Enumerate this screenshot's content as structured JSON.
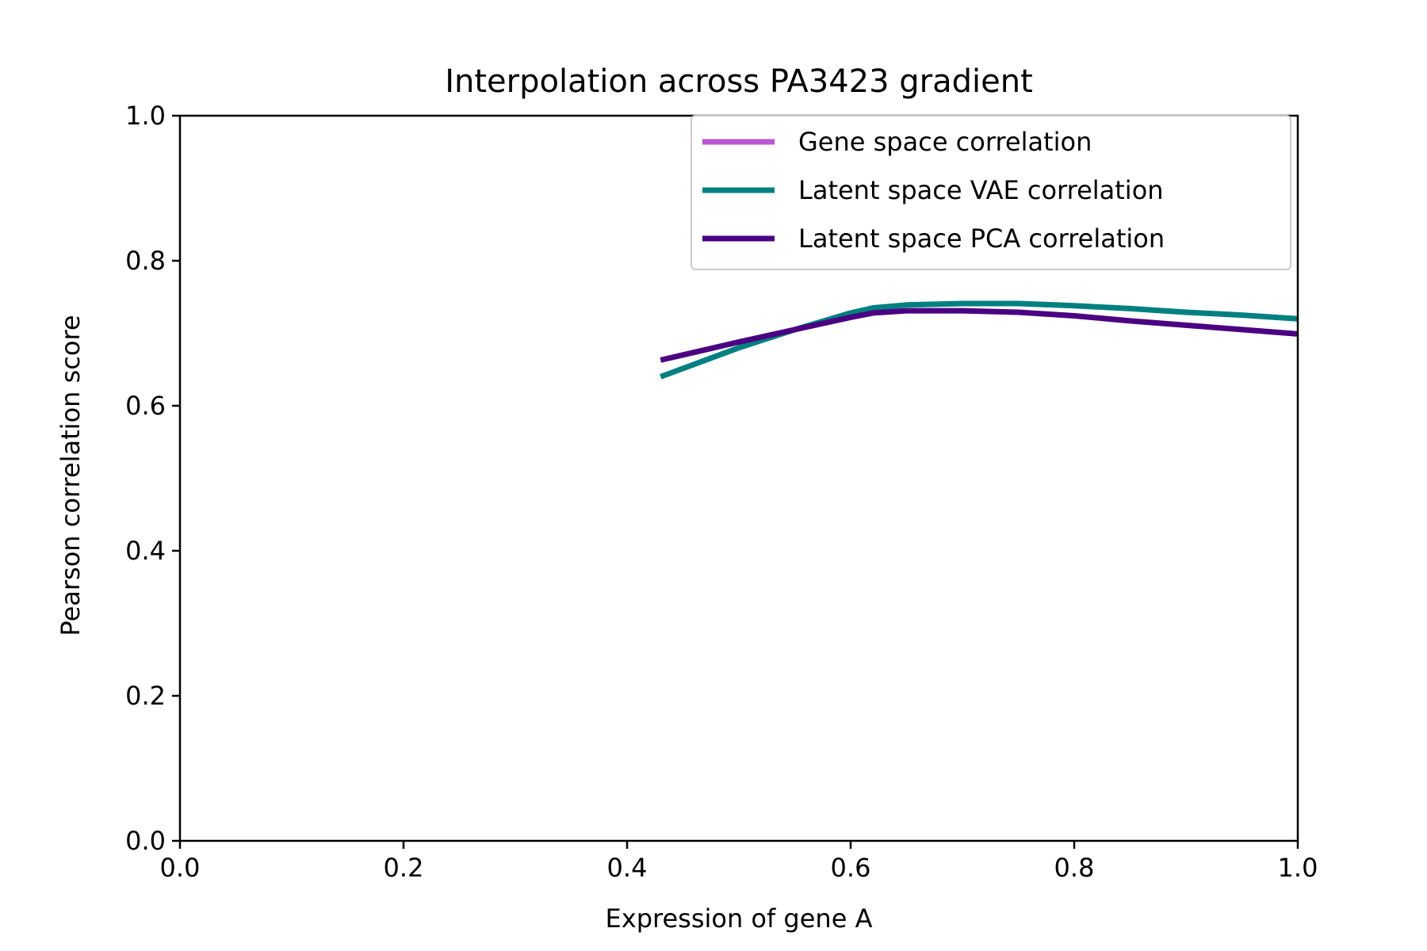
{
  "chart_data": {
    "type": "line",
    "title": "Interpolation across PA3423 gradient",
    "xlabel": "Expression of gene A",
    "ylabel": "Pearson correlation score",
    "xlim": [
      0.0,
      1.0
    ],
    "ylim": [
      0.0,
      1.0
    ],
    "xticks": [
      "0.0",
      "0.2",
      "0.4",
      "0.6",
      "0.8",
      "1.0"
    ],
    "yticks": [
      "0.0",
      "0.2",
      "0.4",
      "0.6",
      "0.8",
      "1.0"
    ],
    "grid": false,
    "legend_position": "top-right",
    "series": [
      {
        "name": "Gene space correlation",
        "color": "#ba55d3",
        "x": [],
        "y": []
      },
      {
        "name": "Latent space VAE correlation",
        "color": "#008080",
        "x": [
          0.43,
          0.5,
          0.55,
          0.6,
          0.62,
          0.65,
          0.7,
          0.75,
          0.8,
          0.85,
          0.9,
          0.95,
          1.0
        ],
        "y": [
          0.64,
          0.68,
          0.705,
          0.728,
          0.735,
          0.739,
          0.741,
          0.741,
          0.738,
          0.734,
          0.729,
          0.725,
          0.72
        ]
      },
      {
        "name": "Latent space PCA correlation",
        "color": "#4b0082",
        "x": [
          0.43,
          0.5,
          0.55,
          0.6,
          0.62,
          0.65,
          0.7,
          0.75,
          0.8,
          0.85,
          0.9,
          0.95,
          1.0
        ],
        "y": [
          0.663,
          0.688,
          0.705,
          0.722,
          0.728,
          0.731,
          0.731,
          0.729,
          0.724,
          0.717,
          0.711,
          0.705,
          0.699
        ]
      }
    ]
  }
}
